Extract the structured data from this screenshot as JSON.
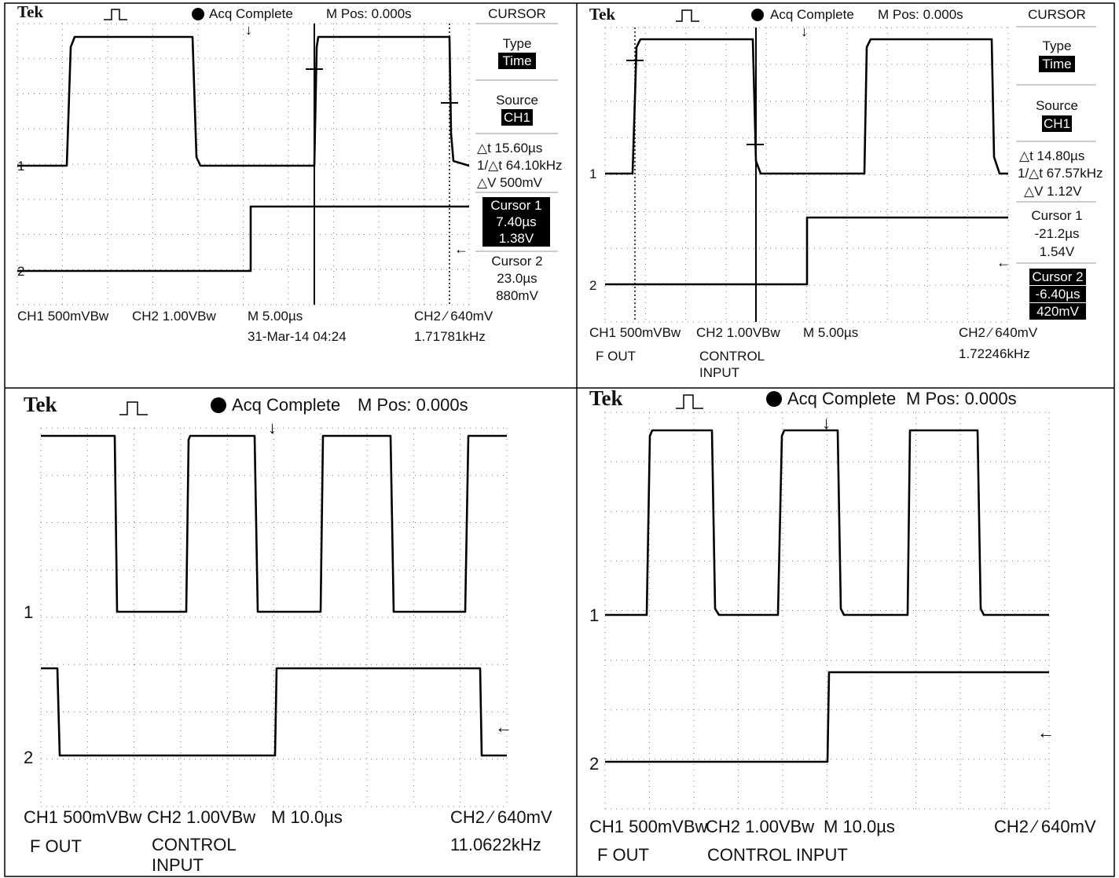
{
  "panels": [
    {
      "header": {
        "brand": "Tek",
        "status": "Acq Complete",
        "position": "M Pos: 0.000s",
        "menu_title": "CURSOR"
      },
      "menu": [
        "Type",
        "Time",
        "Source",
        "CH1",
        "△t 15.60µs",
        "1/△t 64.10kHz",
        "△V 500mV",
        "Cursor 1",
        "7.40µs",
        "1.38V",
        "Cursor 2",
        "23.0µs",
        "880mV"
      ],
      "channel_markers": [
        "1",
        "2"
      ],
      "footer": [
        "CH1 500mVBw",
        "CH2 1.00VBw",
        "M 5.00µs",
        "CH2 ⁄ 640mV",
        "31-Mar-14 04:24",
        "1.71781kHz"
      ]
    },
    {
      "header": {
        "brand": "Tek",
        "status": "Acq Complete",
        "position": "M Pos: 0.000s",
        "menu_title": "CURSOR"
      },
      "menu": [
        "Type",
        "Time",
        "Source",
        "CH1",
        "△t 14.80µs",
        "1/△t 67.57kHz",
        "△V 1.12V",
        "Cursor 1",
        "-21.2µs",
        "1.54V",
        "Cursor 2",
        "-6.40µs",
        "420mV"
      ],
      "channel_markers": [
        "1",
        "2"
      ],
      "footer": [
        "CH1 500mVBw",
        "CH2 1.00VBw",
        "M 5.00µs",
        "CH2 ⁄ 640mV",
        "1.72246kHz"
      ],
      "labels": [
        "F OUT",
        "CONTROL INPUT"
      ]
    },
    {
      "header": {
        "brand": "Tek",
        "status": "Acq Complete",
        "position": "M Pos: 0.000s"
      },
      "channel_markers": [
        "1",
        "2"
      ],
      "footer": [
        "CH1 500mVBw",
        "CH2 1.00VBw",
        "M 10.0µs",
        "CH2 ⁄ 640mV",
        "11.0622kHz"
      ],
      "labels": [
        "F OUT",
        "CONTROL INPUT"
      ]
    },
    {
      "header": {
        "brand": "Tek",
        "status": "Acq Complete",
        "position": "M Pos: 0.000s"
      },
      "channel_markers": [
        "1",
        "2"
      ],
      "footer": [
        "CH1 500mVBw",
        "CH2 1.00VBw",
        "M 10.0µs",
        "CH2 ⁄ 640mV"
      ],
      "labels": [
        "F OUT",
        "CONTROL INPUT"
      ]
    }
  ]
}
